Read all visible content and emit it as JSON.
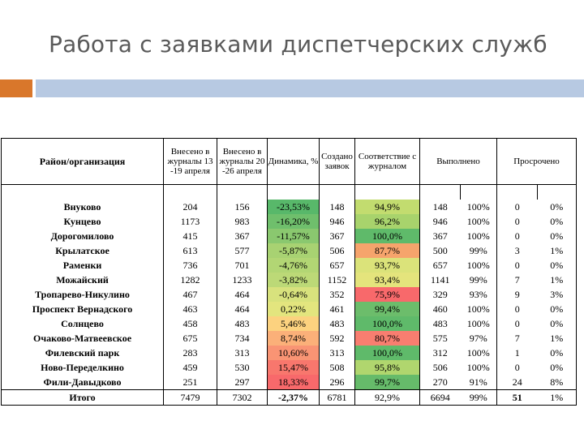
{
  "title": "Работа с заявками диспетчерских служб",
  "colors": {
    "accent_orange": "#d9772b",
    "accent_blue": "#b7c9e2"
  },
  "headers": {
    "district": "Район/организация",
    "entered_prev": "Внесено в журналы 13 -19 апреля",
    "entered_curr": "Внесено в журналы 20 -26 апреля",
    "dynamics": "Динамика, %",
    "created": "Создано заявок",
    "match": "Соответствие с журналом",
    "done": "Выполнено",
    "overdue": "Просрочено"
  },
  "rows": [
    {
      "name": "Внуково",
      "prev": "204",
      "curr": "156",
      "dyn": "-23,53%",
      "dyn_color": "#58b86a",
      "created": "148",
      "match": "94,9%",
      "match_color": "#c2dc6f",
      "done": "148",
      "done_pct": "100%",
      "over": "0",
      "over_pct": "0%"
    },
    {
      "name": "Кунцево",
      "prev": "1173",
      "curr": "983",
      "dyn": "-16,20%",
      "dyn_color": "#6fbf6c",
      "created": "946",
      "match": "96,2%",
      "match_color": "#a8d36c",
      "done": "946",
      "done_pct": "100%",
      "over": "0",
      "over_pct": "0%"
    },
    {
      "name": "Дорогомилово",
      "prev": "415",
      "curr": "367",
      "dyn": "-11,57%",
      "dyn_color": "#8ac86f",
      "created": "367",
      "match": "100,0%",
      "match_color": "#5fba6a",
      "done": "367",
      "done_pct": "100%",
      "over": "0",
      "over_pct": "0%"
    },
    {
      "name": "Крылатское",
      "prev": "613",
      "curr": "577",
      "dyn": "-5,87%",
      "dyn_color": "#a8d272",
      "created": "506",
      "match": "87,7%",
      "match_color": "#f6a46c",
      "done": "500",
      "done_pct": "99%",
      "over": "3",
      "over_pct": "1%"
    },
    {
      "name": "Раменки",
      "prev": "736",
      "curr": "701",
      "dyn": "-4,76%",
      "dyn_color": "#b2d674",
      "created": "657",
      "match": "93,7%",
      "match_color": "#dbe37a",
      "done": "657",
      "done_pct": "100%",
      "over": "0",
      "over_pct": "0%"
    },
    {
      "name": "Можайский",
      "prev": "1282",
      "curr": "1233",
      "dyn": "-3,82%",
      "dyn_color": "#bcd977",
      "created": "1152",
      "match": "93,4%",
      "match_color": "#e4e47c",
      "done": "1141",
      "done_pct": "99%",
      "over": "7",
      "over_pct": "1%"
    },
    {
      "name": "Тропарево-Никулино",
      "prev": "467",
      "curr": "464",
      "dyn": "-0,64%",
      "dyn_color": "#d8e27d",
      "created": "352",
      "match": "75,9%",
      "match_color": "#f8696b",
      "done": "329",
      "done_pct": "93%",
      "over": "9",
      "over_pct": "3%"
    },
    {
      "name": "Проспект Вернадского",
      "prev": "463",
      "curr": "464",
      "dyn": "0,22%",
      "dyn_color": "#e3e57e",
      "created": "461",
      "match": "99,4%",
      "match_color": "#6cbd6b",
      "done": "460",
      "done_pct": "100%",
      "over": "0",
      "over_pct": "0%"
    },
    {
      "name": "Солнцево",
      "prev": "458",
      "curr": "483",
      "dyn": "5,46%",
      "dyn_color": "#fcd27f",
      "created": "483",
      "match": "100,0%",
      "match_color": "#5fba6a",
      "done": "483",
      "done_pct": "100%",
      "over": "0",
      "over_pct": "0%"
    },
    {
      "name": "Очаково-Матвеевское",
      "prev": "675",
      "curr": "734",
      "dyn": "8,74%",
      "dyn_color": "#fbb079",
      "created": "592",
      "match": "80,7%",
      "match_color": "#f87e70",
      "done": "575",
      "done_pct": "97%",
      "over": "7",
      "over_pct": "1%"
    },
    {
      "name": "Филевский парк",
      "prev": "283",
      "curr": "313",
      "dyn": "10,60%",
      "dyn_color": "#f99474",
      "created": "313",
      "match": "100,0%",
      "match_color": "#5fba6a",
      "done": "312",
      "done_pct": "100%",
      "over": "1",
      "over_pct": "0%"
    },
    {
      "name": "Ново-Переделкино",
      "prev": "459",
      "curr": "530",
      "dyn": "15,47%",
      "dyn_color": "#f8776d",
      "created": "508",
      "match": "95,8%",
      "match_color": "#b0d66e",
      "done": "506",
      "done_pct": "100%",
      "over": "0",
      "over_pct": "0%"
    },
    {
      "name": "Фили-Давыдково",
      "prev": "251",
      "curr": "297",
      "dyn": "18,33%",
      "dyn_color": "#f8696b",
      "created": "296",
      "match": "99,7%",
      "match_color": "#66bb6a",
      "done": "270",
      "done_pct": "91%",
      "over": "24",
      "over_pct": "8%"
    }
  ],
  "total": {
    "name": "Итого",
    "prev": "7479",
    "curr": "7302",
    "dyn": "-2,37%",
    "created": "6781",
    "match": "92,9%",
    "done": "6694",
    "done_pct": "99%",
    "over": "51",
    "over_pct": "1%"
  }
}
